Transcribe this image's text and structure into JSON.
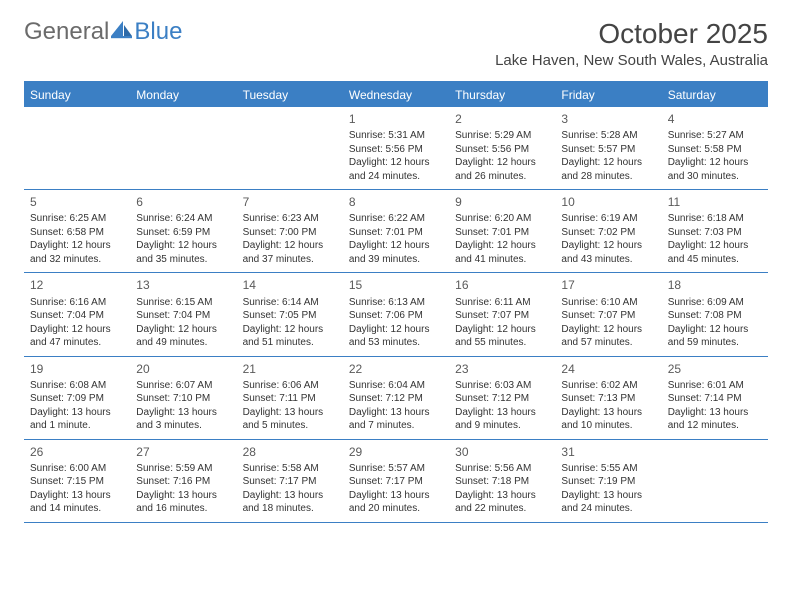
{
  "logo": {
    "part1": "General",
    "part2": "Blue"
  },
  "title": "October 2025",
  "location": "Lake Haven, New South Wales, Australia",
  "colors": {
    "brand": "#3b7fc4",
    "text": "#333333",
    "logo_gray": "#6b6b6b",
    "background": "#ffffff"
  },
  "weekdays": [
    "Sunday",
    "Monday",
    "Tuesday",
    "Wednesday",
    "Thursday",
    "Friday",
    "Saturday"
  ],
  "layout": {
    "first_weekday_index": 3,
    "days_in_month": 31
  },
  "days": {
    "1": {
      "sunrise": "5:31 AM",
      "sunset": "5:56 PM",
      "daylight": "12 hours and 24 minutes."
    },
    "2": {
      "sunrise": "5:29 AM",
      "sunset": "5:56 PM",
      "daylight": "12 hours and 26 minutes."
    },
    "3": {
      "sunrise": "5:28 AM",
      "sunset": "5:57 PM",
      "daylight": "12 hours and 28 minutes."
    },
    "4": {
      "sunrise": "5:27 AM",
      "sunset": "5:58 PM",
      "daylight": "12 hours and 30 minutes."
    },
    "5": {
      "sunrise": "6:25 AM",
      "sunset": "6:58 PM",
      "daylight": "12 hours and 32 minutes."
    },
    "6": {
      "sunrise": "6:24 AM",
      "sunset": "6:59 PM",
      "daylight": "12 hours and 35 minutes."
    },
    "7": {
      "sunrise": "6:23 AM",
      "sunset": "7:00 PM",
      "daylight": "12 hours and 37 minutes."
    },
    "8": {
      "sunrise": "6:22 AM",
      "sunset": "7:01 PM",
      "daylight": "12 hours and 39 minutes."
    },
    "9": {
      "sunrise": "6:20 AM",
      "sunset": "7:01 PM",
      "daylight": "12 hours and 41 minutes."
    },
    "10": {
      "sunrise": "6:19 AM",
      "sunset": "7:02 PM",
      "daylight": "12 hours and 43 minutes."
    },
    "11": {
      "sunrise": "6:18 AM",
      "sunset": "7:03 PM",
      "daylight": "12 hours and 45 minutes."
    },
    "12": {
      "sunrise": "6:16 AM",
      "sunset": "7:04 PM",
      "daylight": "12 hours and 47 minutes."
    },
    "13": {
      "sunrise": "6:15 AM",
      "sunset": "7:04 PM",
      "daylight": "12 hours and 49 minutes."
    },
    "14": {
      "sunrise": "6:14 AM",
      "sunset": "7:05 PM",
      "daylight": "12 hours and 51 minutes."
    },
    "15": {
      "sunrise": "6:13 AM",
      "sunset": "7:06 PM",
      "daylight": "12 hours and 53 minutes."
    },
    "16": {
      "sunrise": "6:11 AM",
      "sunset": "7:07 PM",
      "daylight": "12 hours and 55 minutes."
    },
    "17": {
      "sunrise": "6:10 AM",
      "sunset": "7:07 PM",
      "daylight": "12 hours and 57 minutes."
    },
    "18": {
      "sunrise": "6:09 AM",
      "sunset": "7:08 PM",
      "daylight": "12 hours and 59 minutes."
    },
    "19": {
      "sunrise": "6:08 AM",
      "sunset": "7:09 PM",
      "daylight": "13 hours and 1 minute."
    },
    "20": {
      "sunrise": "6:07 AM",
      "sunset": "7:10 PM",
      "daylight": "13 hours and 3 minutes."
    },
    "21": {
      "sunrise": "6:06 AM",
      "sunset": "7:11 PM",
      "daylight": "13 hours and 5 minutes."
    },
    "22": {
      "sunrise": "6:04 AM",
      "sunset": "7:12 PM",
      "daylight": "13 hours and 7 minutes."
    },
    "23": {
      "sunrise": "6:03 AM",
      "sunset": "7:12 PM",
      "daylight": "13 hours and 9 minutes."
    },
    "24": {
      "sunrise": "6:02 AM",
      "sunset": "7:13 PM",
      "daylight": "13 hours and 10 minutes."
    },
    "25": {
      "sunrise": "6:01 AM",
      "sunset": "7:14 PM",
      "daylight": "13 hours and 12 minutes."
    },
    "26": {
      "sunrise": "6:00 AM",
      "sunset": "7:15 PM",
      "daylight": "13 hours and 14 minutes."
    },
    "27": {
      "sunrise": "5:59 AM",
      "sunset": "7:16 PM",
      "daylight": "13 hours and 16 minutes."
    },
    "28": {
      "sunrise": "5:58 AM",
      "sunset": "7:17 PM",
      "daylight": "13 hours and 18 minutes."
    },
    "29": {
      "sunrise": "5:57 AM",
      "sunset": "7:17 PM",
      "daylight": "13 hours and 20 minutes."
    },
    "30": {
      "sunrise": "5:56 AM",
      "sunset": "7:18 PM",
      "daylight": "13 hours and 22 minutes."
    },
    "31": {
      "sunrise": "5:55 AM",
      "sunset": "7:19 PM",
      "daylight": "13 hours and 24 minutes."
    }
  },
  "labels": {
    "sunrise": "Sunrise:",
    "sunset": "Sunset:",
    "daylight": "Daylight:"
  }
}
